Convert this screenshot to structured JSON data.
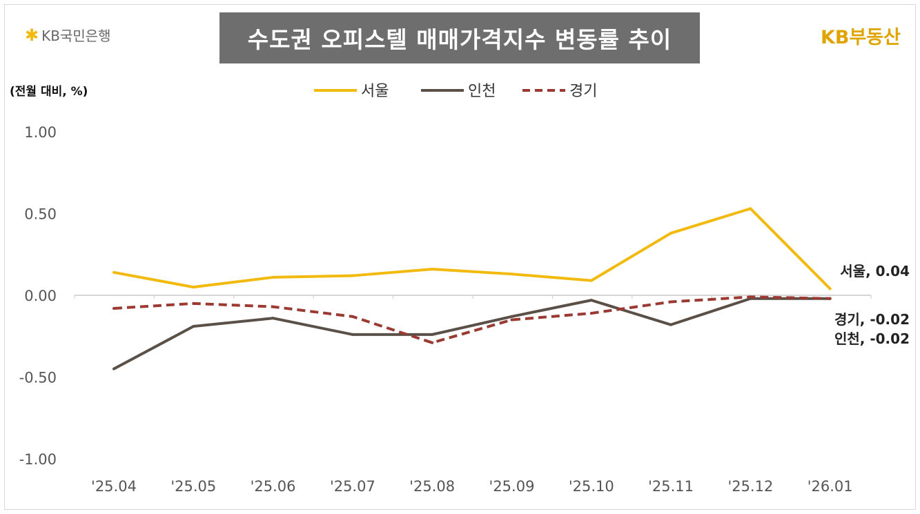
{
  "header": {
    "title": "수도권 오피스텔 매매가격지수 변동률 추이",
    "logo_left": "KB국민은행",
    "logo_right": "KB부동산"
  },
  "chart_data": {
    "type": "line",
    "title": "수도권 오피스텔 매매가격지수 변동률 추이",
    "ylabel": "(전월 대비, %)",
    "categories": [
      "'25.04",
      "'25.05",
      "'25.06",
      "'25.07",
      "'25.08",
      "'25.09",
      "'25.10",
      "'25.11",
      "'25.12",
      "'26.01"
    ],
    "ylim": [
      -1,
      1
    ],
    "yticks": [
      "1.00",
      "0.50",
      "0.00",
      "-0.50",
      "-1.00"
    ],
    "legend_position": "top",
    "grid": false,
    "series": [
      {
        "name": "서울",
        "color": "#f2b90f",
        "dash": false,
        "values": [
          0.14,
          0.05,
          0.11,
          0.12,
          0.16,
          0.13,
          0.09,
          0.38,
          0.53,
          0.04
        ],
        "end_label": "서울, 0.04"
      },
      {
        "name": "인천",
        "color": "#5a5048",
        "dash": false,
        "values": [
          -0.45,
          -0.19,
          -0.14,
          -0.24,
          -0.24,
          -0.13,
          -0.03,
          -0.18,
          -0.02,
          -0.02
        ],
        "end_label": "인천, -0.02"
      },
      {
        "name": "경기",
        "color": "#9b3a32",
        "dash": true,
        "values": [
          -0.08,
          -0.05,
          -0.07,
          -0.13,
          -0.29,
          -0.15,
          -0.11,
          -0.04,
          -0.01,
          -0.02
        ],
        "end_label": "경기, -0.02"
      }
    ]
  }
}
